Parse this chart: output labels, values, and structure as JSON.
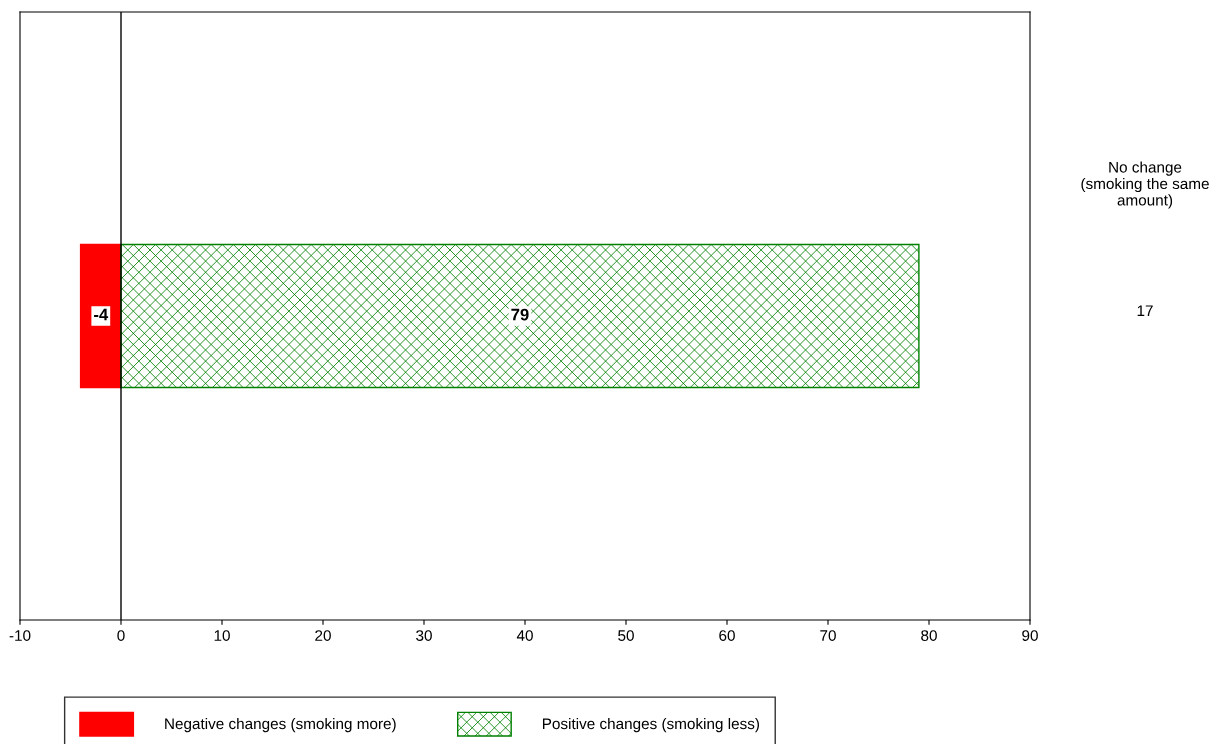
{
  "chart_data": {
    "type": "bar",
    "orientation": "horizontal",
    "stacked": true,
    "categories": [
      null
    ],
    "series": [
      {
        "name": "Negative changes (smoking more)",
        "color": "#ff0000",
        "values": [
          -4
        ]
      },
      {
        "name": "Positive changes (smoking less)",
        "color": "#008000",
        "values": [
          79
        ]
      }
    ],
    "xlim": [
      -10,
      90
    ],
    "xticks": [
      -10,
      0,
      10,
      20,
      30,
      40,
      50,
      60,
      70,
      80,
      90
    ],
    "ref_lines": [
      {
        "axis": "x",
        "value": 0,
        "color": "#000000"
      }
    ],
    "data_labels": true,
    "legend": "bottom",
    "tick_labels": "x",
    "grid": false,
    "annotations": [
      "No change\n(smoking the same\namount)",
      "17"
    ]
  }
}
